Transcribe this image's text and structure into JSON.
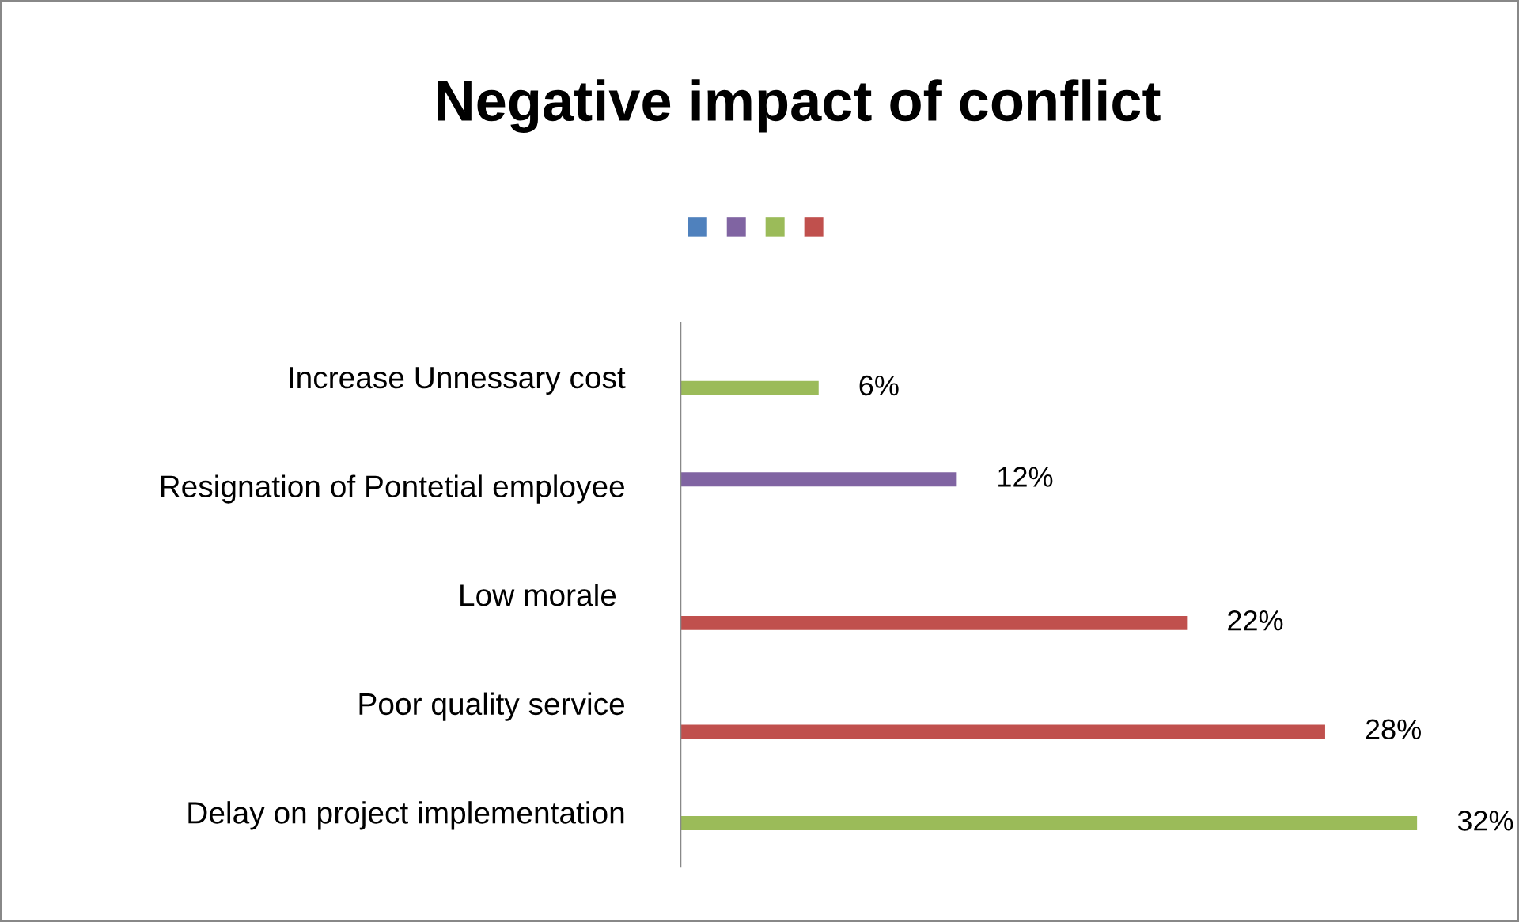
{
  "chart_data": {
    "type": "bar",
    "orientation": "horizontal",
    "title": "Negative impact of conflict",
    "categories": [
      "Increase Unnessary cost",
      "Resignation of Pontetial employee",
      "Low morale ",
      "Poor quality service",
      "Delay on project implementation"
    ],
    "series": [
      {
        "color": "#4f81bd",
        "values": [
          null,
          null,
          null,
          null,
          null
        ],
        "value_labels": [
          null,
          null,
          null,
          null,
          null
        ]
      },
      {
        "color": "#8064a2",
        "values": [
          null,
          12,
          null,
          null,
          null
        ],
        "value_labels": [
          null,
          "12%",
          null,
          null,
          null
        ]
      },
      {
        "color": "#9bbb59",
        "values": [
          6,
          null,
          null,
          null,
          32
        ],
        "value_labels": [
          "6%",
          null,
          null,
          null,
          "32%"
        ]
      },
      {
        "color": "#c0504d",
        "values": [
          null,
          null,
          22,
          28,
          null
        ],
        "value_labels": [
          null,
          null,
          "22%",
          "28%",
          null
        ]
      }
    ],
    "grid": false,
    "tick_labels": "y"
  }
}
